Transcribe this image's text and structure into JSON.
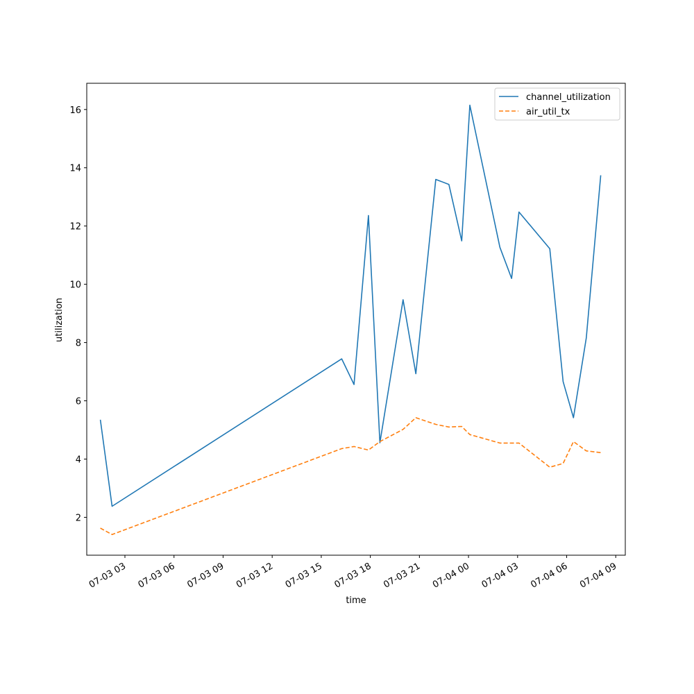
{
  "chart_data": {
    "type": "line",
    "title": "",
    "xlabel": "time",
    "ylabel": "utilization",
    "x_ticks": [
      "07-03 03",
      "07-03 06",
      "07-03 09",
      "07-03 12",
      "07-03 15",
      "07-03 18",
      "07-03 21",
      "07-04 00",
      "07-04 03",
      "07-04 06",
      "07-04 09"
    ],
    "y_ticks": [
      "2",
      "4",
      "6",
      "8",
      "10",
      "12",
      "14",
      "16"
    ],
    "xlim": [
      "2025-07-03T00:40",
      "2025-07-04T09:35"
    ],
    "ylim": [
      0.7,
      16.9
    ],
    "grid": false,
    "legend_position": "top-right",
    "colors": {
      "channel_utilization": "#1f77b4",
      "air_util_tx": "#ff7f0e"
    },
    "series": [
      {
        "name": "channel_utilization",
        "style": "solid",
        "x": [
          "2025-07-03T01:30",
          "2025-07-03T02:13",
          "2025-07-03T16:15",
          "2025-07-03T17:00",
          "2025-07-03T17:53",
          "2025-07-03T18:35",
          "2025-07-03T20:00",
          "2025-07-03T20:47",
          "2025-07-03T22:00",
          "2025-07-03T22:48",
          "2025-07-03T23:35",
          "2025-07-04T00:05",
          "2025-07-04T01:55",
          "2025-07-04T02:38",
          "2025-07-04T03:05",
          "2025-07-04T04:58",
          "2025-07-04T05:47",
          "2025-07-04T06:25",
          "2025-07-04T07:12",
          "2025-07-04T08:05"
        ],
        "y": [
          5.35,
          2.38,
          7.44,
          6.56,
          12.36,
          4.56,
          9.47,
          6.93,
          13.6,
          13.43,
          11.49,
          16.15,
          11.27,
          10.2,
          12.48,
          11.22,
          6.66,
          5.42,
          8.16,
          13.74
        ]
      },
      {
        "name": "air_util_tx",
        "style": "dashed",
        "x": [
          "2025-07-03T01:30",
          "2025-07-03T02:13",
          "2025-07-03T16:15",
          "2025-07-03T17:00",
          "2025-07-03T17:53",
          "2025-07-03T18:35",
          "2025-07-03T20:00",
          "2025-07-03T20:47",
          "2025-07-03T22:00",
          "2025-07-03T22:48",
          "2025-07-03T23:35",
          "2025-07-04T00:05",
          "2025-07-04T01:55",
          "2025-07-04T02:38",
          "2025-07-04T03:05",
          "2025-07-04T04:58",
          "2025-07-04T05:47",
          "2025-07-04T06:25",
          "2025-07-04T07:12",
          "2025-07-04T08:05"
        ],
        "y": [
          1.63,
          1.41,
          4.36,
          4.43,
          4.31,
          4.6,
          5.02,
          5.42,
          5.19,
          5.1,
          5.12,
          4.84,
          4.55,
          4.55,
          4.55,
          3.72,
          3.85,
          4.6,
          4.28,
          4.22
        ]
      }
    ]
  }
}
